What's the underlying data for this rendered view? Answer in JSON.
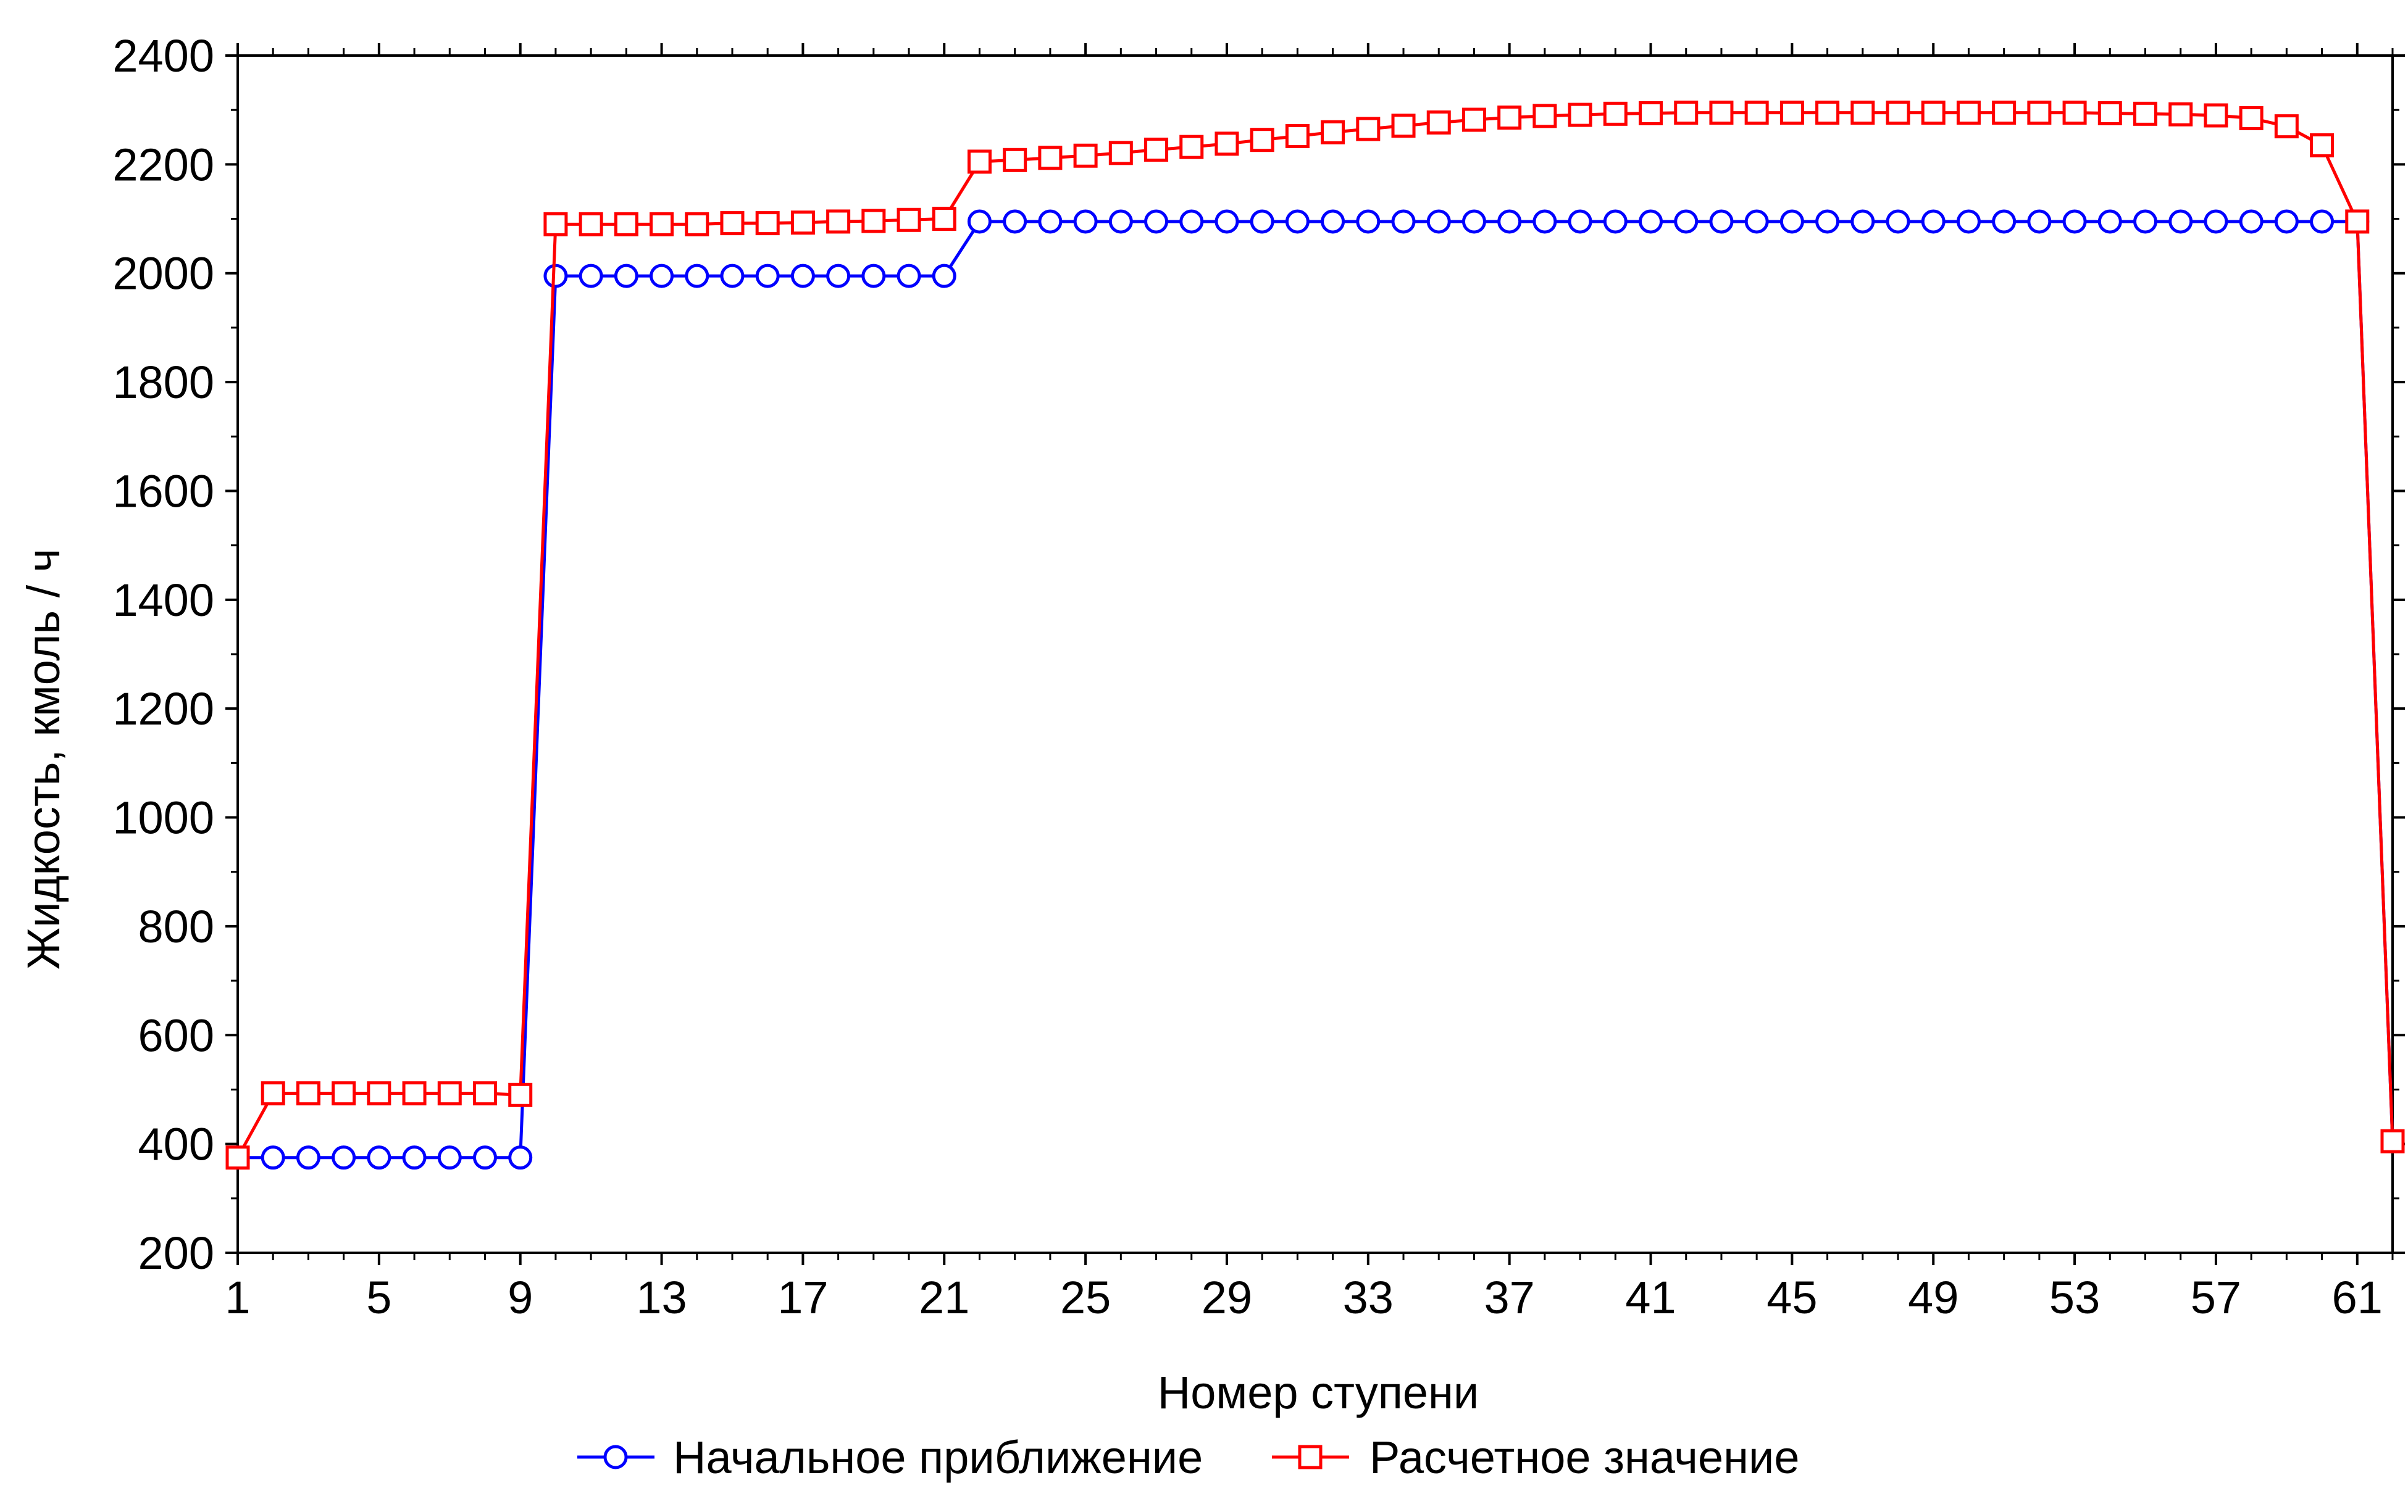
{
  "chart_data": {
    "type": "line",
    "title": "",
    "xlabel": "Номер ступени",
    "ylabel": "Жидкость, кмоль / ч",
    "xlim": [
      1,
      62
    ],
    "ylim": [
      200,
      2400
    ],
    "x_ticks": [
      1,
      5,
      9,
      13,
      17,
      21,
      25,
      29,
      33,
      37,
      41,
      45,
      49,
      53,
      57,
      61
    ],
    "y_ticks": [
      200,
      400,
      600,
      800,
      1000,
      1200,
      1400,
      1600,
      1800,
      2000,
      2200,
      2400
    ],
    "grid": false,
    "legend_position": "bottom",
    "x": [
      1,
      2,
      3,
      4,
      5,
      6,
      7,
      8,
      9,
      10,
      11,
      12,
      13,
      14,
      15,
      16,
      17,
      18,
      19,
      20,
      21,
      22,
      23,
      24,
      25,
      26,
      27,
      28,
      29,
      30,
      31,
      32,
      33,
      34,
      35,
      36,
      37,
      38,
      39,
      40,
      41,
      42,
      43,
      44,
      45,
      46,
      47,
      48,
      49,
      50,
      51,
      52,
      53,
      54,
      55,
      56,
      57,
      58,
      59,
      60,
      61,
      62
    ],
    "series": [
      {
        "name": "Начальное приближение",
        "color": "#0000ff",
        "marker": "circle",
        "values": [
          375,
          375,
          375,
          375,
          375,
          375,
          375,
          375,
          375,
          1995,
          1995,
          1995,
          1995,
          1995,
          1995,
          1995,
          1995,
          1995,
          1995,
          1995,
          1995,
          2095,
          2095,
          2095,
          2095,
          2095,
          2095,
          2095,
          2095,
          2095,
          2095,
          2095,
          2095,
          2095,
          2095,
          2095,
          2095,
          2095,
          2095,
          2095,
          2095,
          2095,
          2095,
          2095,
          2095,
          2095,
          2095,
          2095,
          2095,
          2095,
          2095,
          2095,
          2095,
          2095,
          2095,
          2095,
          2095,
          2095,
          2095,
          2095,
          2095,
          405
        ]
      },
      {
        "name": "Расчетное значение",
        "color": "#ff0000",
        "marker": "square",
        "values": [
          375,
          493,
          493,
          493,
          493,
          493,
          493,
          493,
          490,
          2090,
          2090,
          2090,
          2090,
          2090,
          2092,
          2092,
          2093,
          2095,
          2096,
          2098,
          2100,
          2205,
          2208,
          2212,
          2216,
          2221,
          2227,
          2232,
          2238,
          2245,
          2252,
          2259,
          2265,
          2271,
          2277,
          2282,
          2286,
          2289,
          2291,
          2293,
          2294,
          2295,
          2295,
          2295,
          2295,
          2295,
          2295,
          2295,
          2295,
          2295,
          2295,
          2295,
          2295,
          2294,
          2293,
          2292,
          2290,
          2285,
          2270,
          2235,
          2095,
          405
        ]
      }
    ]
  }
}
